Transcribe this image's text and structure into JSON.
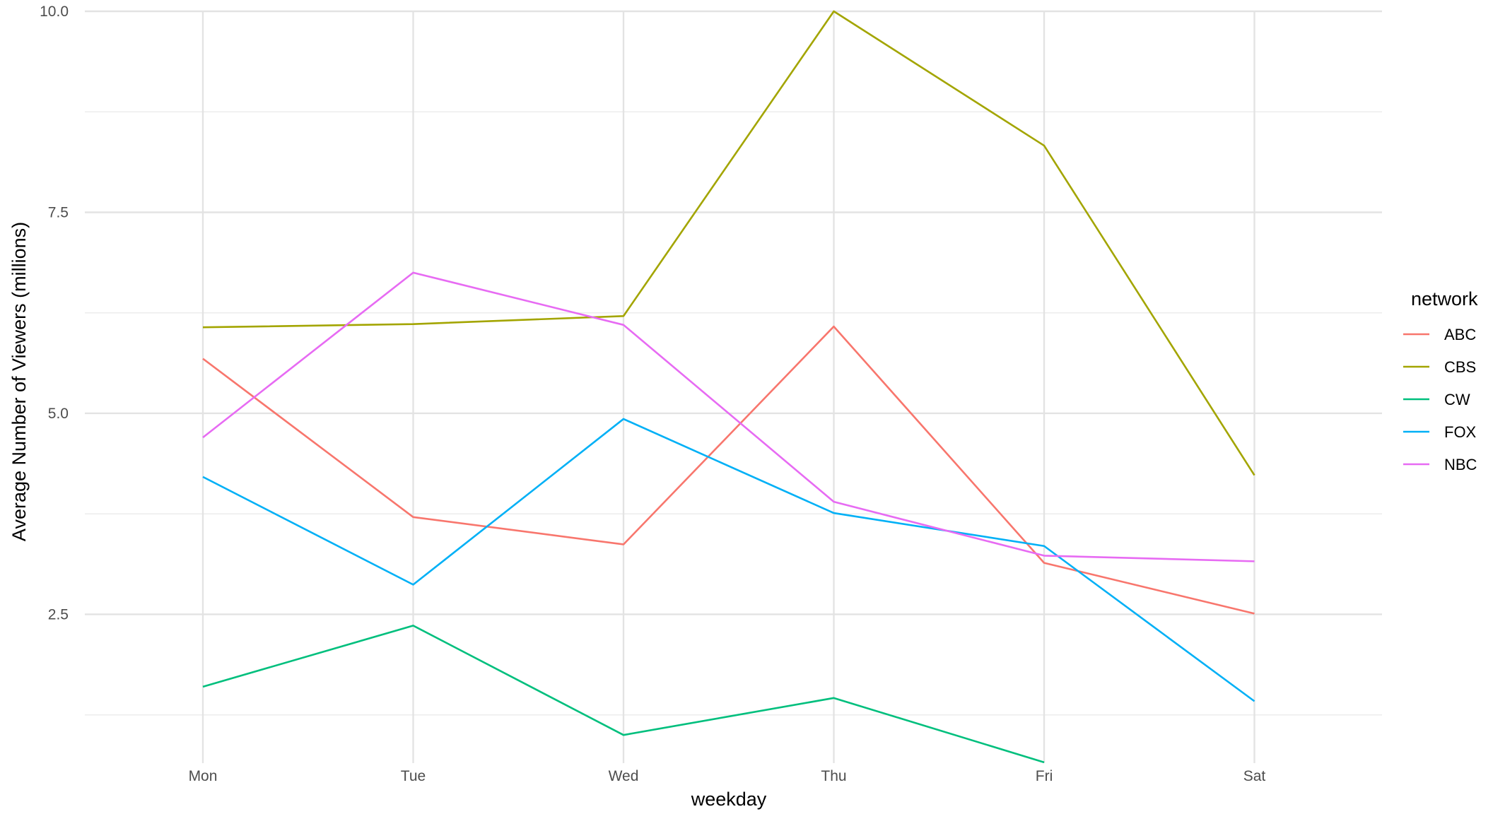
{
  "chart_data": {
    "type": "line",
    "categories": [
      "Mon",
      "Tue",
      "Wed",
      "Thu",
      "Fri",
      "Sat"
    ],
    "xlabel": "weekday",
    "ylabel": "Average Number of Viewers (millions)",
    "ylim": [
      0.65,
      10.0
    ],
    "yticks": [
      2.5,
      5.0,
      7.5,
      10.0
    ],
    "ytick_labels": [
      "2.5",
      "5.0",
      "7.5",
      "10.0"
    ],
    "y_minor_gridlines": [
      1.25,
      3.75,
      6.25,
      8.75
    ],
    "grid": true,
    "legend": {
      "title": "network",
      "position": "right"
    },
    "series": [
      {
        "name": "ABC",
        "color": "#F8766D",
        "values": [
          5.68,
          3.71,
          3.37,
          6.08,
          3.14,
          2.51
        ]
      },
      {
        "name": "CBS",
        "color": "#A3A500",
        "values": [
          6.07,
          6.11,
          6.21,
          10.0,
          8.33,
          4.23
        ]
      },
      {
        "name": "CW",
        "color": "#00BF7D",
        "values": [
          1.6,
          2.36,
          1.0,
          1.46,
          0.66,
          null
        ]
      },
      {
        "name": "FOX",
        "color": "#00B0F6",
        "values": [
          4.21,
          2.87,
          4.93,
          3.76,
          3.35,
          1.42
        ]
      },
      {
        "name": "NBC",
        "color": "#E76BF3",
        "values": [
          4.7,
          6.75,
          6.1,
          3.9,
          3.23,
          3.16
        ]
      }
    ]
  }
}
